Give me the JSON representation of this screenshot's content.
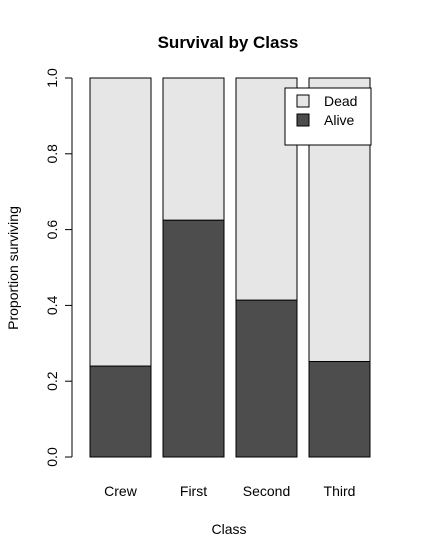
{
  "chart_data": {
    "type": "bar",
    "stacked": true,
    "title": "Survival by Class",
    "xlabel": "Class",
    "ylabel": "Proportion surviving",
    "categories": [
      "Crew",
      "First",
      "Second",
      "Third"
    ],
    "series": [
      {
        "name": "Alive",
        "values": [
          0.24,
          0.625,
          0.414,
          0.252
        ],
        "color": "#4d4d4d"
      },
      {
        "name": "Dead",
        "values": [
          0.76,
          0.375,
          0.586,
          0.748
        ],
        "color": "#e6e6e6"
      }
    ],
    "ylim": [
      0,
      1
    ],
    "yticks": [
      "0.0",
      "0.2",
      "0.4",
      "0.6",
      "0.8",
      "1.0"
    ],
    "legend": {
      "position": "top-right",
      "entries": [
        "Dead",
        "Alive"
      ]
    },
    "grid": false
  }
}
